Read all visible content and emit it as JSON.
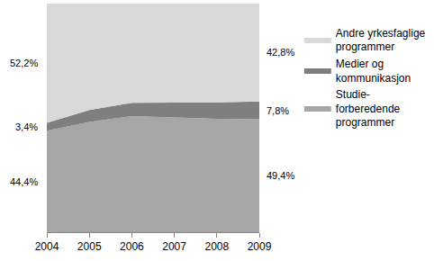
{
  "chart_data": {
    "type": "area",
    "stacked": true,
    "data_labels": true,
    "tick_labels": "x",
    "categories": [
      "2004",
      "2005",
      "2006",
      "2007",
      "2008",
      "2009"
    ],
    "ylim": [
      0,
      100
    ],
    "legend": "right",
    "series": [
      {
        "name": "Studie-forberedende programmer",
        "color": "#a6a6a6",
        "values": [
          44.4,
          48.2,
          50.8,
          50.2,
          49.6,
          49.4
        ],
        "value_labels": [
          "44,4%",
          null,
          null,
          null,
          null,
          "49,4%"
        ]
      },
      {
        "name": "Medier og kommunikasjon",
        "color": "#7f7f7f",
        "values": [
          3.4,
          5.2,
          5.8,
          6.5,
          7.2,
          7.8
        ],
        "value_labels": [
          "3,4%",
          null,
          null,
          null,
          null,
          "7,8%"
        ]
      },
      {
        "name": "Andre yrkesfaglige programmer",
        "color": "#d9d9d9",
        "values": [
          52.2,
          46.6,
          43.4,
          43.3,
          43.2,
          42.8
        ],
        "value_labels": [
          "52,2%",
          null,
          null,
          null,
          null,
          "42,8%"
        ]
      }
    ]
  }
}
